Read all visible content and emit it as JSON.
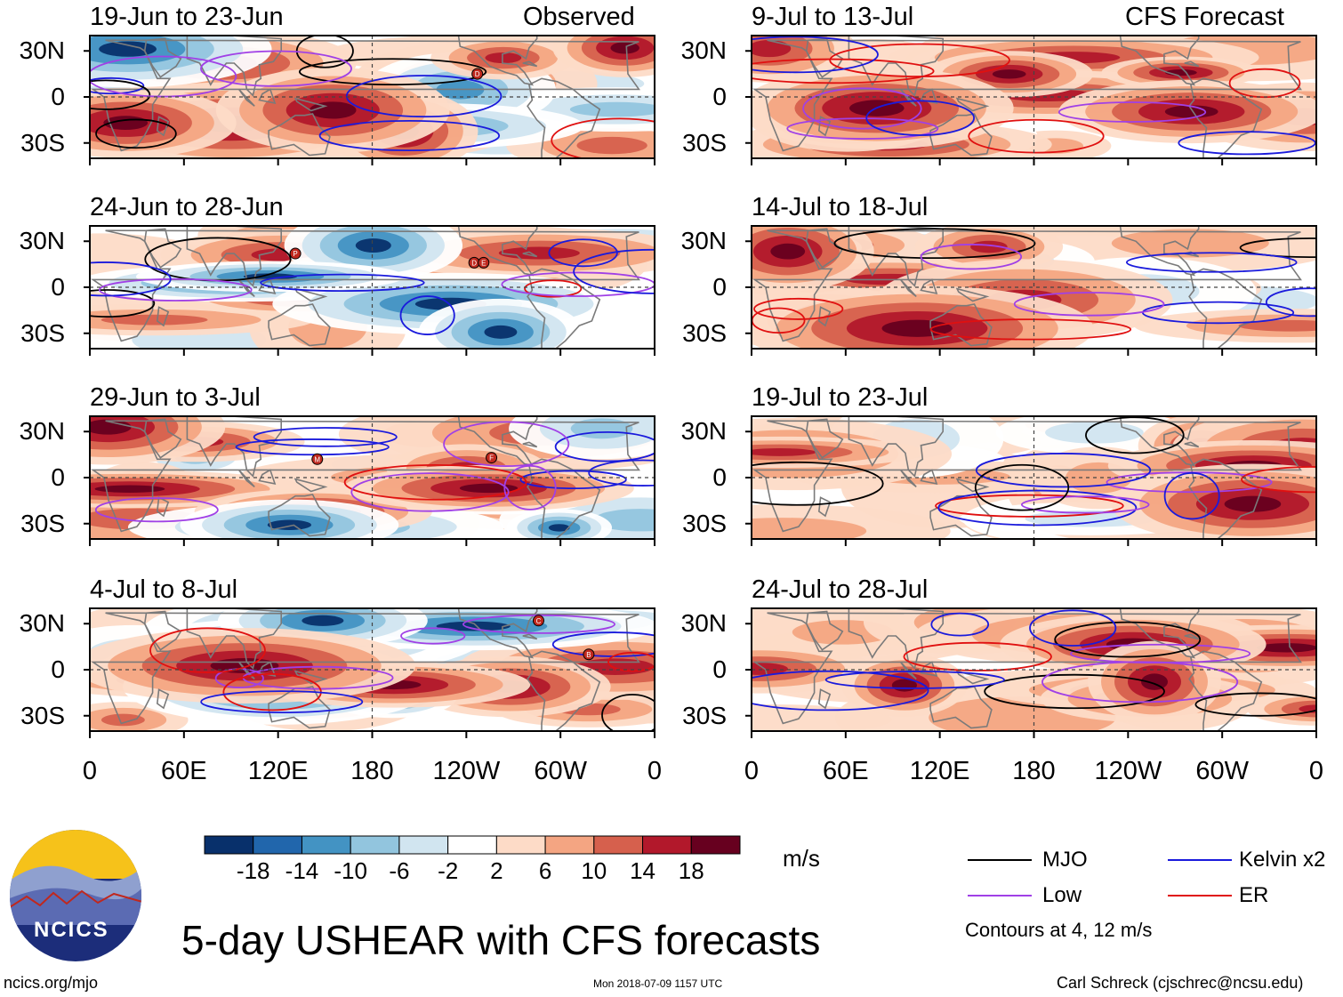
{
  "chart_data": {
    "type": "heatmap",
    "title": "5-day USHEAR with CFS forecasts",
    "units": "m/s",
    "columns": {
      "observed": "Observed",
      "forecast": "CFS Forecast"
    },
    "y_ticks": [
      "30N",
      "0",
      "30S"
    ],
    "x_ticks": [
      "0",
      "60E",
      "120E",
      "180",
      "120W",
      "60W",
      "0"
    ],
    "colorbar": {
      "ticks": [
        "-18",
        "-14",
        "-10",
        "-6",
        "-2",
        "2",
        "6",
        "10",
        "14",
        "18"
      ],
      "colors": [
        "#08306b",
        "#2166ac",
        "#4393c3",
        "#92c5de",
        "#d1e5f0",
        "#ffffff",
        "#fddbc7",
        "#f4a582",
        "#d6604d",
        "#b2182b",
        "#67001f"
      ]
    },
    "legend": [
      {
        "label": "MJO",
        "color": "#000000"
      },
      {
        "label": "Kelvin x2",
        "color": "#1a1adc"
      },
      {
        "label": "Low",
        "color": "#a040e6"
      },
      {
        "label": "ER",
        "color": "#e01010"
      }
    ],
    "contour_note": "Contours at 4, 12 m/s",
    "panels": [
      {
        "period": "19-Jun to 23-Jun",
        "kind": "observed",
        "storms": [
          {
            "label": "D",
            "lon": 247,
            "lat": 15
          }
        ]
      },
      {
        "period": "24-Jun to 28-Jun",
        "kind": "observed",
        "storms": [
          {
            "label": "P",
            "lon": 131,
            "lat": 22
          },
          {
            "label": "D",
            "lon": 245,
            "lat": 16
          },
          {
            "label": "E",
            "lon": 251,
            "lat": 16
          }
        ]
      },
      {
        "period": "29-Jun to 3-Jul",
        "kind": "observed",
        "storms": [
          {
            "label": "M",
            "lon": 145,
            "lat": 12
          },
          {
            "label": "F",
            "lon": 256,
            "lat": 13
          }
        ]
      },
      {
        "period": "4-Jul to 8-Jul",
        "kind": "observed",
        "storms": [
          {
            "label": "C",
            "lon": 286,
            "lat": 32
          },
          {
            "label": "B",
            "lon": 318,
            "lat": 10
          }
        ]
      },
      {
        "period": "9-Jul to 13-Jul",
        "kind": "forecast",
        "storms": []
      },
      {
        "period": "14-Jul to 18-Jul",
        "kind": "forecast",
        "storms": []
      },
      {
        "period": "19-Jul to 23-Jul",
        "kind": "forecast",
        "storms": []
      },
      {
        "period": "24-Jul to 28-Jul",
        "kind": "forecast",
        "storms": []
      }
    ]
  },
  "footer": {
    "logo_text": "NCICS",
    "url": "ncics.org/mjo",
    "timestamp": "Mon 2018-07-09 1157 UTC",
    "credit": "Carl Schreck (cjschrec@ncsu.edu)"
  }
}
